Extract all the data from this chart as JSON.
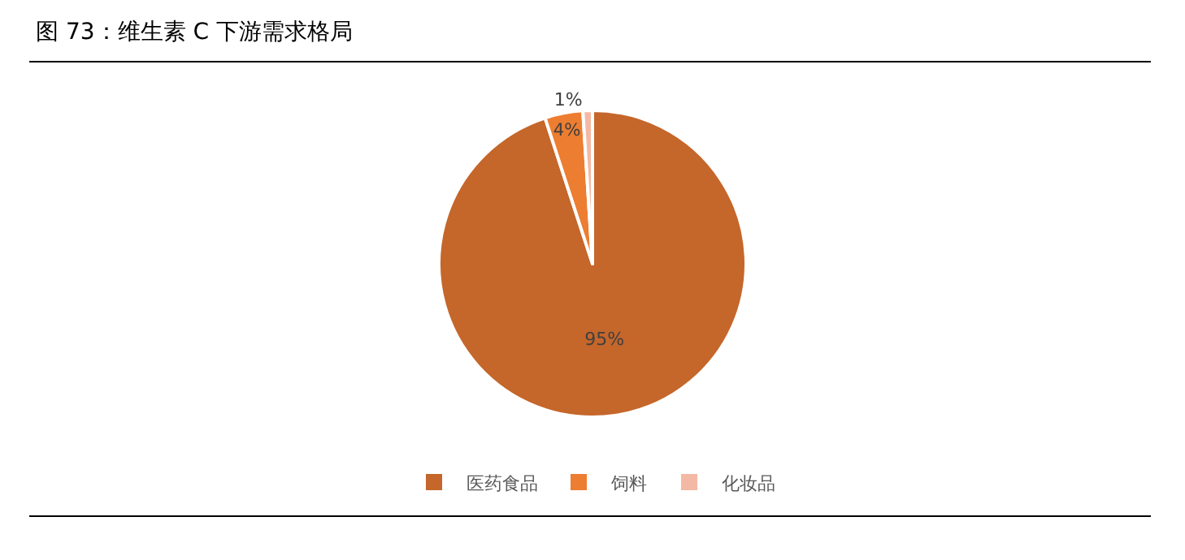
{
  "chart_data": {
    "type": "pie",
    "title": "图 73：维生素 C 下游需求格局",
    "categories": [
      "医药食品",
      "饲料",
      "化妆品"
    ],
    "values": [
      95,
      4,
      1
    ],
    "colors": [
      "#c5662a",
      "#ed7d31",
      "#f4b9a4"
    ],
    "value_labels": [
      "95%",
      "4%",
      "1%"
    ],
    "legend": "bottom"
  }
}
